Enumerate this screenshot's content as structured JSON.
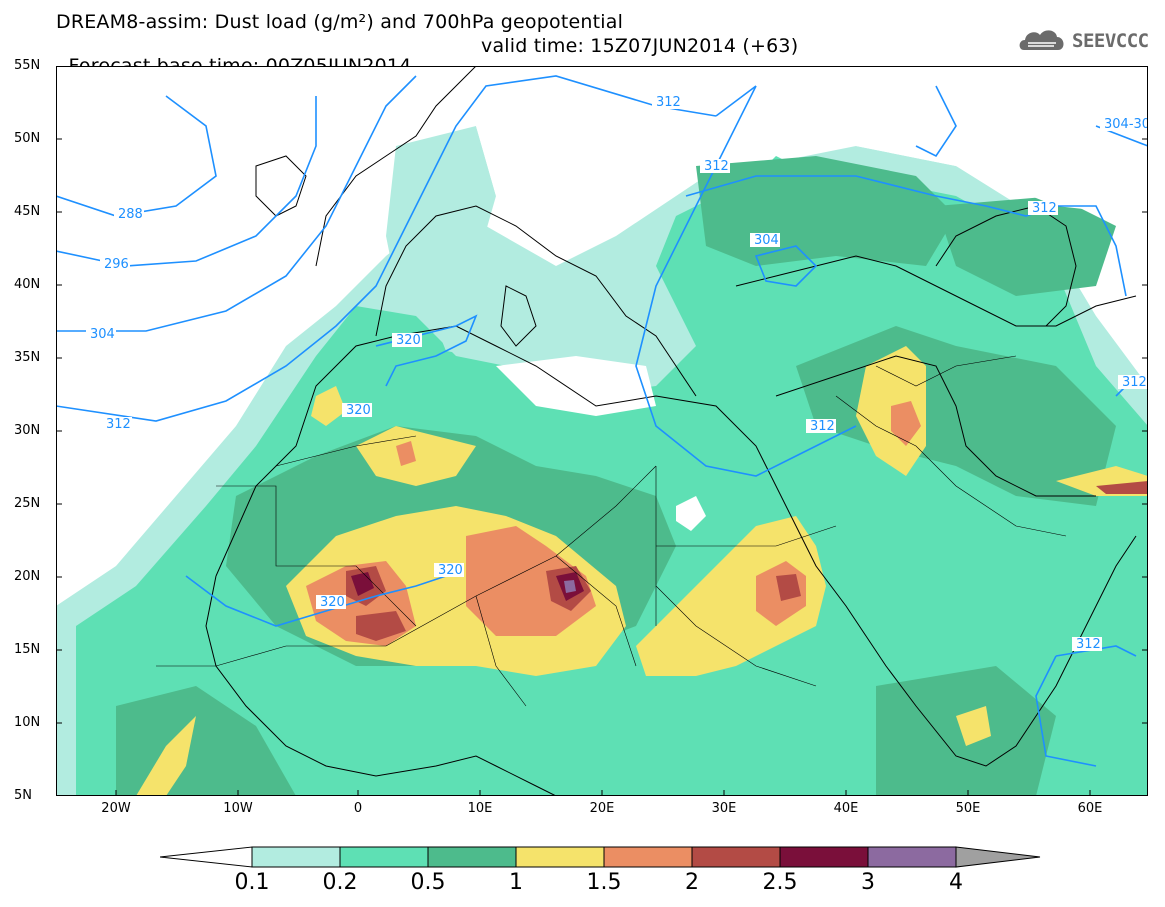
{
  "title": {
    "line1": "DREAM8-assim: Dust load (g/m²) and 700hPa geopotential",
    "line2_left": "Forecast base time: 00Z05JUN2014",
    "line2_right": "valid time: 15Z07JUN2014 (+63)"
  },
  "logo": {
    "text": "SEEVCCC",
    "icon": "cloud-icon"
  },
  "axes": {
    "lat_labels": [
      "55N",
      "50N",
      "45N",
      "40N",
      "35N",
      "30N",
      "25N",
      "20N",
      "15N",
      "10N",
      "5N"
    ],
    "lon_labels": [
      "20W",
      "10W",
      "0",
      "10E",
      "20E",
      "30E",
      "40E",
      "50E",
      "60E"
    ]
  },
  "contour_labels": [
    "312",
    "304-30",
    "312",
    "304",
    "312",
    "288",
    "296",
    "304",
    "312",
    "320",
    "320",
    "320",
    "320",
    "312",
    "312",
    "312"
  ],
  "colorbar": {
    "ticks": [
      "0.1",
      "0.2",
      "0.5",
      "1",
      "1.5",
      "2",
      "2.5",
      "3",
      "4"
    ],
    "colors": [
      "#ffffff",
      "#b2ece0",
      "#5ee0b4",
      "#4dbb8c",
      "#f5e36b",
      "#eb8e63",
      "#b34b45",
      "#7a0f3a",
      "#8c6aa0",
      "#a0a0a0"
    ]
  },
  "palette": {
    "contour": "#1e90ff",
    "border": "#000000",
    "land_low": "#4dbb8c"
  }
}
